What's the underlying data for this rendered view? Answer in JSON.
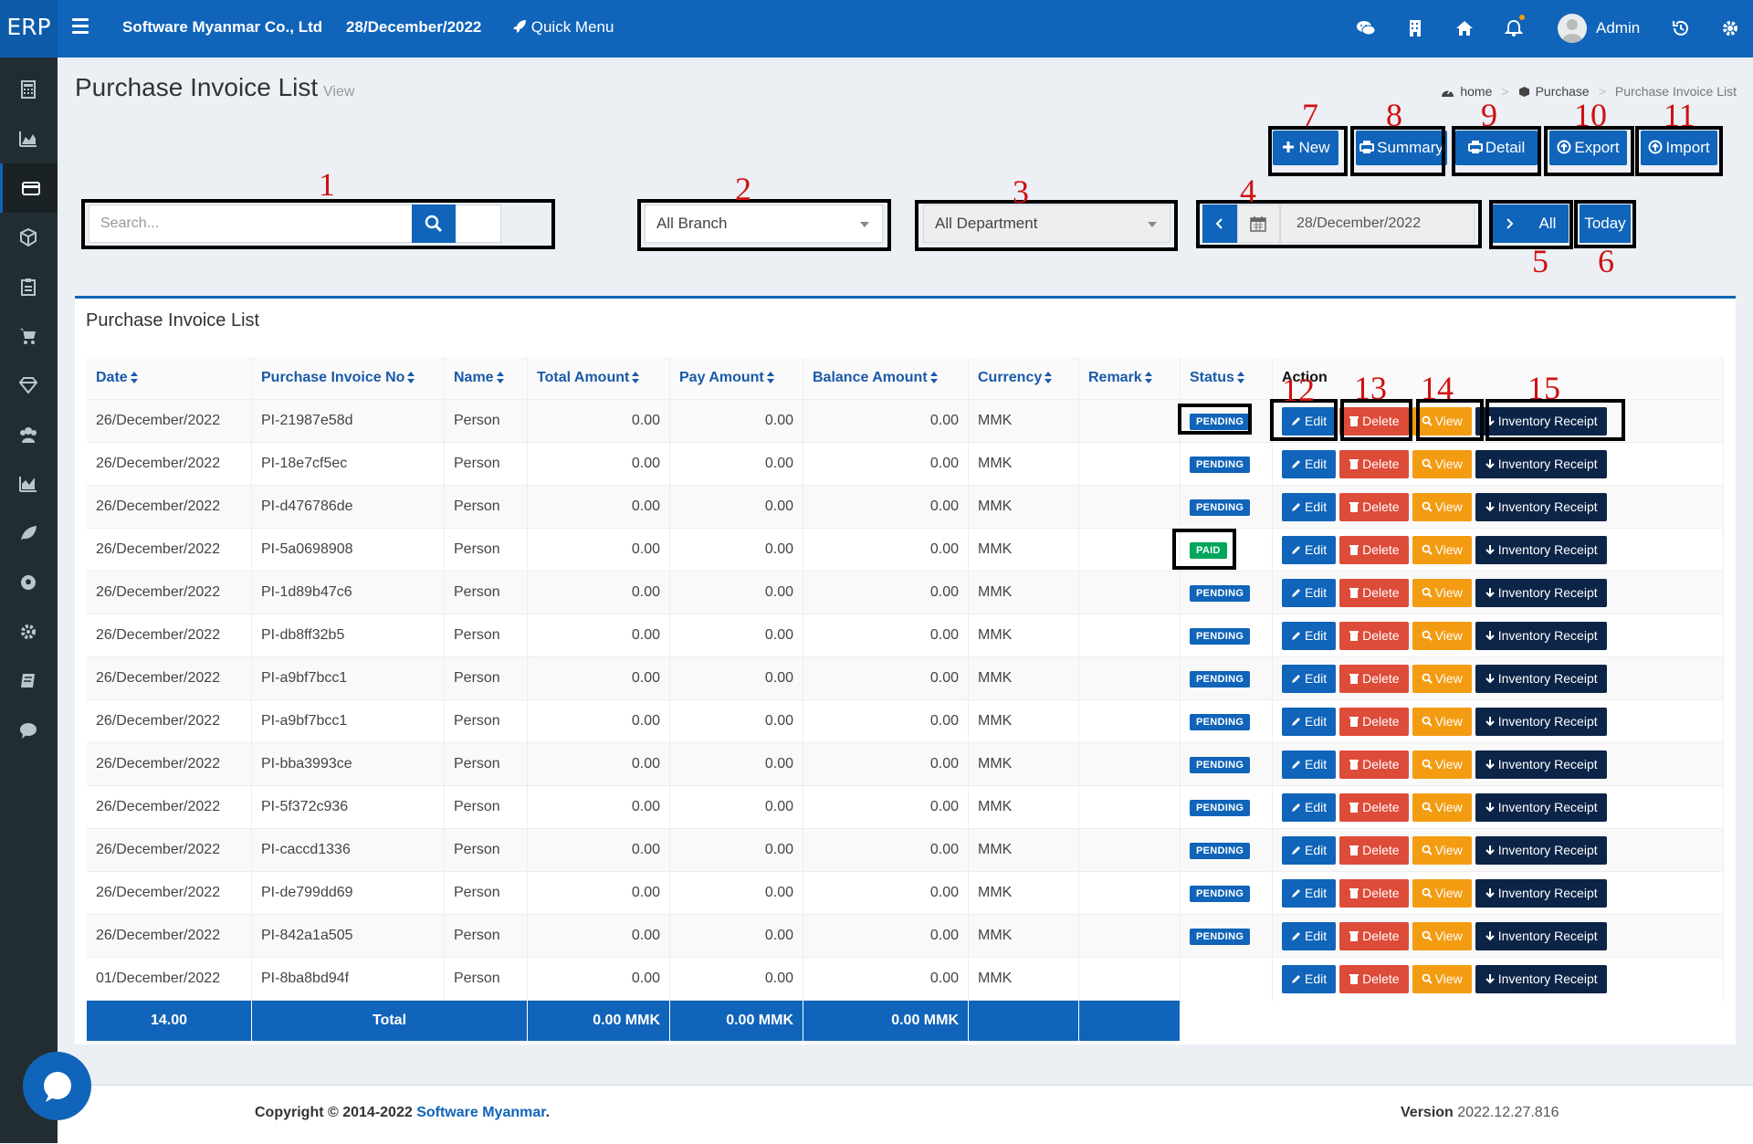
{
  "app": {
    "brand": "ERP",
    "company": "Software Myanmar Co., Ltd",
    "date": "28/December/2022",
    "quick_menu": "Quick Menu",
    "user": "Admin"
  },
  "page": {
    "title": "Purchase Invoice List",
    "subtitle": "View",
    "breadcrumb": [
      "home",
      "Purchase",
      "Purchase Invoice List"
    ]
  },
  "toolbar": {
    "new": "New",
    "summary": "Summary",
    "detail": "Detail",
    "export": "Export",
    "import": "Import"
  },
  "filters": {
    "search_placeholder": "Search...",
    "branch": "All Branch",
    "department": "All Department",
    "date": "28/December/2022",
    "all": "All",
    "today": "Today"
  },
  "annotations": [
    "1",
    "2",
    "3",
    "4",
    "5",
    "6",
    "7",
    "8",
    "9",
    "10",
    "11",
    "12",
    "13",
    "14",
    "15"
  ],
  "panel": {
    "title": "Purchase Invoice List",
    "columns": [
      "Date",
      "Purchase Invoice No",
      "Name",
      "Total Amount",
      "Pay Amount",
      "Balance Amount",
      "Currency",
      "Remark",
      "Status",
      "Action"
    ],
    "actions": {
      "edit": "Edit",
      "delete": "Delete",
      "view": "View",
      "inventory": "Inventory Receipt"
    },
    "rows": [
      {
        "date": "26/December/2022",
        "no": "PI-21987e58d",
        "name": "Person",
        "total": "0.00",
        "pay": "0.00",
        "balance": "0.00",
        "currency": "MMK",
        "remark": "",
        "status": "PENDING"
      },
      {
        "date": "26/December/2022",
        "no": "PI-18e7cf5ec",
        "name": "Person",
        "total": "0.00",
        "pay": "0.00",
        "balance": "0.00",
        "currency": "MMK",
        "remark": "",
        "status": "PENDING"
      },
      {
        "date": "26/December/2022",
        "no": "PI-d476786de",
        "name": "Person",
        "total": "0.00",
        "pay": "0.00",
        "balance": "0.00",
        "currency": "MMK",
        "remark": "",
        "status": "PENDING"
      },
      {
        "date": "26/December/2022",
        "no": "PI-5a0698908",
        "name": "Person",
        "total": "0.00",
        "pay": "0.00",
        "balance": "0.00",
        "currency": "MMK",
        "remark": "",
        "status": "PAID"
      },
      {
        "date": "26/December/2022",
        "no": "PI-1d89b47c6",
        "name": "Person",
        "total": "0.00",
        "pay": "0.00",
        "balance": "0.00",
        "currency": "MMK",
        "remark": "",
        "status": "PENDING"
      },
      {
        "date": "26/December/2022",
        "no": "PI-db8ff32b5",
        "name": "Person",
        "total": "0.00",
        "pay": "0.00",
        "balance": "0.00",
        "currency": "MMK",
        "remark": "",
        "status": "PENDING"
      },
      {
        "date": "26/December/2022",
        "no": "PI-a9bf7bcc1",
        "name": "Person",
        "total": "0.00",
        "pay": "0.00",
        "balance": "0.00",
        "currency": "MMK",
        "remark": "",
        "status": "PENDING"
      },
      {
        "date": "26/December/2022",
        "no": "PI-a9bf7bcc1",
        "name": "Person",
        "total": "0.00",
        "pay": "0.00",
        "balance": "0.00",
        "currency": "MMK",
        "remark": "",
        "status": "PENDING"
      },
      {
        "date": "26/December/2022",
        "no": "PI-bba3993ce",
        "name": "Person",
        "total": "0.00",
        "pay": "0.00",
        "balance": "0.00",
        "currency": "MMK",
        "remark": "",
        "status": "PENDING"
      },
      {
        "date": "26/December/2022",
        "no": "PI-5f372c936",
        "name": "Person",
        "total": "0.00",
        "pay": "0.00",
        "balance": "0.00",
        "currency": "MMK",
        "remark": "",
        "status": "PENDING"
      },
      {
        "date": "26/December/2022",
        "no": "PI-caccd1336",
        "name": "Person",
        "total": "0.00",
        "pay": "0.00",
        "balance": "0.00",
        "currency": "MMK",
        "remark": "",
        "status": "PENDING"
      },
      {
        "date": "26/December/2022",
        "no": "PI-de799dd69",
        "name": "Person",
        "total": "0.00",
        "pay": "0.00",
        "balance": "0.00",
        "currency": "MMK",
        "remark": "",
        "status": "PENDING"
      },
      {
        "date": "26/December/2022",
        "no": "PI-842a1a505",
        "name": "Person",
        "total": "0.00",
        "pay": "0.00",
        "balance": "0.00",
        "currency": "MMK",
        "remark": "",
        "status": "PENDING"
      },
      {
        "date": "01/December/2022",
        "no": "PI-8ba8bd94f",
        "name": "Person",
        "total": "0.00",
        "pay": "0.00",
        "balance": "0.00",
        "currency": "MMK",
        "remark": "",
        "status": ""
      }
    ],
    "totals": {
      "count": "14.00",
      "label": "Total",
      "total": "0.00 MMK",
      "pay": "0.00 MMK",
      "balance": "0.00 MMK"
    }
  },
  "footer": {
    "copyright_prefix": "Copyright © 2014-2022",
    "copyright_link": "Software Myanmar",
    "copyright_suffix": ".",
    "version_label": "Version",
    "version": "2022.12.27.816"
  },
  "sidebar_icons": [
    "calculator-icon",
    "chart-area-icon",
    "credit-card-icon",
    "cube-icon",
    "clipboard-icon",
    "cart-icon",
    "diamond-icon",
    "users-icon",
    "bar-chart-icon",
    "leaf-icon",
    "soccer-icon",
    "gear-icon",
    "book-icon",
    "comment-icon"
  ],
  "colors": {
    "primary": "#1064b9",
    "danger": "#dd4b39",
    "warning": "#f39c12",
    "dark": "#0b2447",
    "success": "#00a65a",
    "sidebar": "#222d32"
  }
}
